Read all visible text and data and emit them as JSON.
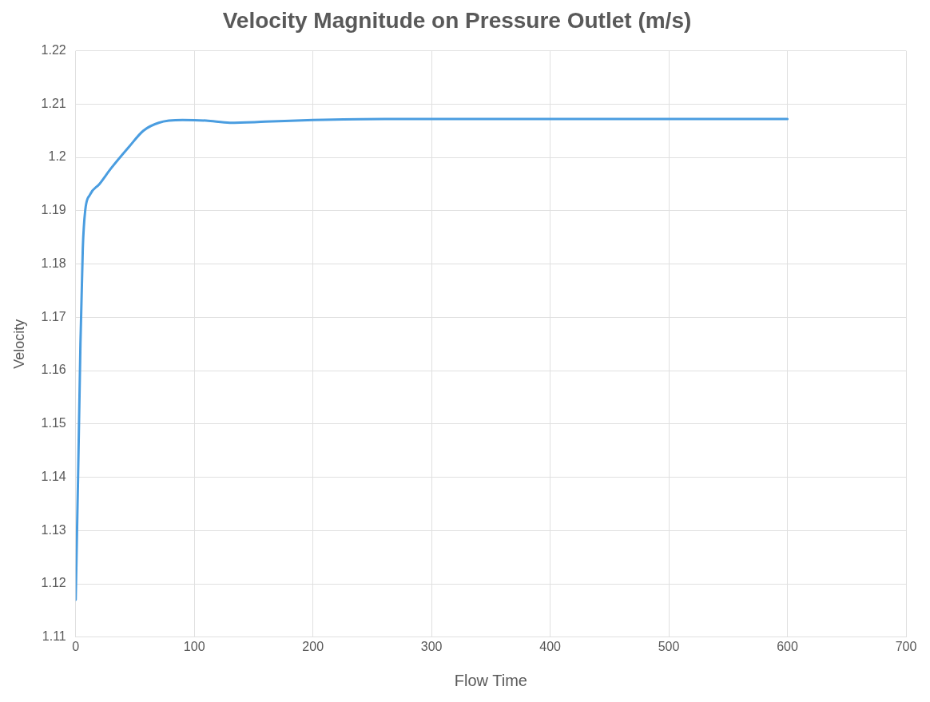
{
  "chart_data": {
    "type": "line",
    "title": "Velocity Magnitude on Pressure Outlet (m/s)",
    "xlabel": "Flow Time",
    "ylabel": "Velocity",
    "series": [
      {
        "color": "#4a9de0",
        "x": [
          0,
          2,
          4,
          6,
          8,
          12,
          20,
          30,
          45,
          57,
          70,
          90,
          110,
          130,
          160,
          200,
          260,
          400,
          600
        ],
        "values": [
          1.117,
          1.14,
          1.165,
          1.183,
          1.19,
          1.193,
          1.195,
          1.198,
          1.202,
          1.205,
          1.2065,
          1.207,
          1.2069,
          1.2065,
          1.2067,
          1.207,
          1.2072,
          1.2072,
          1.2072
        ]
      }
    ],
    "xlim": [
      0,
      700
    ],
    "xticks": [
      0,
      100,
      200,
      300,
      400,
      500,
      600,
      700
    ],
    "ylim": [
      1.11,
      1.22
    ],
    "yticks": [
      1.11,
      1.12,
      1.13,
      1.14,
      1.15,
      1.16,
      1.17,
      1.18,
      1.19,
      1.2,
      1.21,
      1.22
    ],
    "grid": true,
    "legend": false,
    "marker": "none",
    "line_style": "solid"
  }
}
